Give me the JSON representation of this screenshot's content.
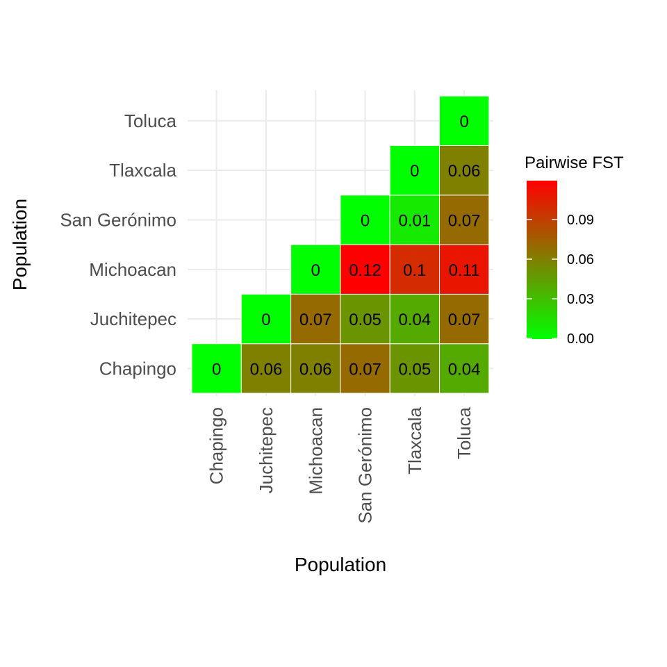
{
  "chart_data": {
    "type": "heatmap",
    "title": "",
    "xlabel": "Population",
    "ylabel": "Population",
    "x_categories": [
      "Chapingo",
      "Juchitepec",
      "Michoacan",
      "San Gerónimo",
      "Tlaxcala",
      "Toluca"
    ],
    "y_categories": [
      "Chapingo",
      "Juchitepec",
      "Michoacan",
      "San Gerónimo",
      "Tlaxcala",
      "Toluca"
    ],
    "cells": [
      {
        "x": "Chapingo",
        "y": "Chapingo",
        "value": 0,
        "label": "0"
      },
      {
        "x": "Juchitepec",
        "y": "Chapingo",
        "value": 0.06,
        "label": "0.06"
      },
      {
        "x": "Michoacan",
        "y": "Chapingo",
        "value": 0.06,
        "label": "0.06"
      },
      {
        "x": "San Gerónimo",
        "y": "Chapingo",
        "value": 0.07,
        "label": "0.07"
      },
      {
        "x": "Tlaxcala",
        "y": "Chapingo",
        "value": 0.05,
        "label": "0.05"
      },
      {
        "x": "Toluca",
        "y": "Chapingo",
        "value": 0.04,
        "label": "0.04"
      },
      {
        "x": "Juchitepec",
        "y": "Juchitepec",
        "value": 0,
        "label": "0"
      },
      {
        "x": "Michoacan",
        "y": "Juchitepec",
        "value": 0.07,
        "label": "0.07"
      },
      {
        "x": "San Gerónimo",
        "y": "Juchitepec",
        "value": 0.05,
        "label": "0.05"
      },
      {
        "x": "Tlaxcala",
        "y": "Juchitepec",
        "value": 0.04,
        "label": "0.04"
      },
      {
        "x": "Toluca",
        "y": "Juchitepec",
        "value": 0.07,
        "label": "0.07"
      },
      {
        "x": "Michoacan",
        "y": "Michoacan",
        "value": 0,
        "label": "0"
      },
      {
        "x": "San Gerónimo",
        "y": "Michoacan",
        "value": 0.12,
        "label": "0.12"
      },
      {
        "x": "Tlaxcala",
        "y": "Michoacan",
        "value": 0.1,
        "label": "0.1"
      },
      {
        "x": "Toluca",
        "y": "Michoacan",
        "value": 0.11,
        "label": "0.11"
      },
      {
        "x": "San Gerónimo",
        "y": "San Gerónimo",
        "value": 0,
        "label": "0"
      },
      {
        "x": "Tlaxcala",
        "y": "San Gerónimo",
        "value": 0.01,
        "label": "0.01"
      },
      {
        "x": "Toluca",
        "y": "San Gerónimo",
        "value": 0.07,
        "label": "0.07"
      },
      {
        "x": "Tlaxcala",
        "y": "Tlaxcala",
        "value": 0,
        "label": "0"
      },
      {
        "x": "Toluca",
        "y": "Tlaxcala",
        "value": 0.06,
        "label": "0.06"
      },
      {
        "x": "Toluca",
        "y": "Toluca",
        "value": 0,
        "label": "0"
      }
    ],
    "legend": {
      "title": "Pairwise FST",
      "position": "right",
      "ticks": [
        {
          "value": 0.0,
          "label": "0.00"
        },
        {
          "value": 0.03,
          "label": "0.03"
        },
        {
          "value": 0.06,
          "label": "0.06"
        },
        {
          "value": 0.09,
          "label": "0.09"
        }
      ],
      "range": [
        0,
        0.12
      ]
    },
    "color_scale": {
      "low": "#00ff00",
      "high": "#ff0000"
    },
    "grid": true
  }
}
